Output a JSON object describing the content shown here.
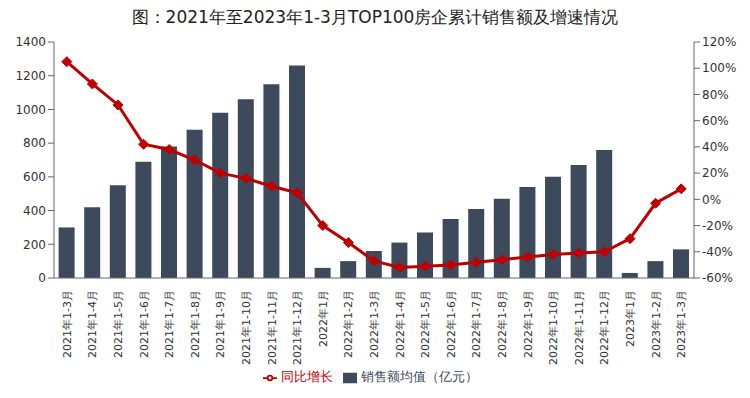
{
  "chart_data": {
    "type": "bar",
    "title": "图：2021年至2023年1-3月TOP100房企累计销售额及增速情况",
    "categories": [
      "2021年1-3月",
      "2021年1-4月",
      "2021年1-5月",
      "2021年1-6月",
      "2021年1-7月",
      "2021年1-8月",
      "2021年1-9月",
      "2021年1-10月",
      "2021年1-11月",
      "2021年1-12月",
      "2022年1月",
      "2022年1-2月",
      "2022年1-3月",
      "2022年1-4月",
      "2022年1-5月",
      "2022年1-6月",
      "2022年1-7月",
      "2022年1-8月",
      "2022年1-9月",
      "2022年1-10月",
      "2022年1-11月",
      "2022年1-12月",
      "2023年1月",
      "2023年1-2月",
      "2023年1-3月"
    ],
    "series": [
      {
        "name": "销售额均值（亿元）",
        "type": "bar",
        "color": "#3d4a5c",
        "values": [
          300,
          420,
          550,
          690,
          780,
          880,
          980,
          1060,
          1150,
          1260,
          60,
          100,
          160,
          210,
          270,
          350,
          410,
          470,
          540,
          600,
          670,
          760,
          30,
          100,
          170
        ]
      },
      {
        "name": "同比增长",
        "type": "line",
        "axis": "y2",
        "color": "#c00000",
        "marker": "diamond",
        "values": [
          105,
          88,
          72,
          42,
          38,
          30,
          20,
          16,
          10,
          5,
          -20,
          -33,
          -47,
          -52,
          -51,
          -50,
          -48,
          -46,
          -44,
          -42,
          -41,
          -40,
          -30,
          -3,
          8
        ]
      }
    ],
    "ylim": [
      0,
      1400
    ],
    "yticks": [
      0,
      200,
      400,
      600,
      800,
      1000,
      1200,
      1400
    ],
    "y2lim": [
      -60,
      120
    ],
    "y2ticks": [
      {
        "value": -60,
        "label": "-60%"
      },
      {
        "value": -40,
        "label": "-40%"
      },
      {
        "value": -20,
        "label": "-20%"
      },
      {
        "value": 0,
        "label": "0%"
      },
      {
        "value": 20,
        "label": "20%"
      },
      {
        "value": 40,
        "label": "40%"
      },
      {
        "value": 60,
        "label": "60%"
      },
      {
        "value": 80,
        "label": "80%"
      },
      {
        "value": 100,
        "label": "100%"
      },
      {
        "value": 120,
        "label": "120%"
      }
    ],
    "grid": false,
    "legend": "bottom"
  }
}
